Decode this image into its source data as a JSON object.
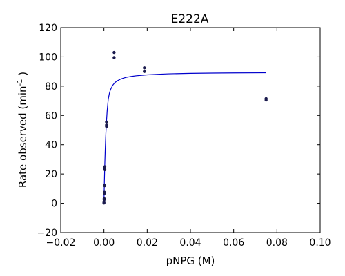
{
  "chart_data": {
    "type": "scatter",
    "title": "E222A",
    "xlabel": "pNPG (M)",
    "ylabel": {
      "main": "Rate observed (min",
      "superscript": "-1",
      "close": " )"
    },
    "xlim": [
      -0.02,
      0.1
    ],
    "ylim": [
      -20,
      120
    ],
    "xticks": [
      {
        "value": -0.02,
        "label": "−0.02"
      },
      {
        "value": 0.0,
        "label": "0.00"
      },
      {
        "value": 0.02,
        "label": "0.02"
      },
      {
        "value": 0.04,
        "label": "0.04"
      },
      {
        "value": 0.06,
        "label": "0.06"
      },
      {
        "value": 0.08,
        "label": "0.08"
      },
      {
        "value": 0.1,
        "label": "0.10"
      }
    ],
    "yticks": [
      {
        "value": -20,
        "label": "−20"
      },
      {
        "value": 0,
        "label": "0"
      },
      {
        "value": 20,
        "label": "20"
      },
      {
        "value": 40,
        "label": "40"
      },
      {
        "value": 60,
        "label": "60"
      },
      {
        "value": 80,
        "label": "80"
      },
      {
        "value": 100,
        "label": "100"
      },
      {
        "value": 120,
        "label": "120"
      }
    ],
    "grid": false,
    "series": [
      {
        "kind": "points",
        "color": "#1a1a4d",
        "points": [
          {
            "x": 0.0,
            "y": 0.2
          },
          {
            "x": 0.0,
            "y": 0.6
          },
          {
            "x": 0.0001,
            "y": 2.5
          },
          {
            "x": 0.0001,
            "y": 3.2
          },
          {
            "x": 0.0002,
            "y": 6.8
          },
          {
            "x": 0.0002,
            "y": 7.5
          },
          {
            "x": 0.0003,
            "y": 12.0
          },
          {
            "x": 0.0003,
            "y": 12.5
          },
          {
            "x": 0.0004,
            "y": 23.0
          },
          {
            "x": 0.0004,
            "y": 24.0
          },
          {
            "x": 0.0004,
            "y": 25.0
          },
          {
            "x": 0.0012,
            "y": 52.5
          },
          {
            "x": 0.0012,
            "y": 53.5
          },
          {
            "x": 0.0012,
            "y": 55.5
          },
          {
            "x": 0.0047,
            "y": 99.5
          },
          {
            "x": 0.0047,
            "y": 103.0
          },
          {
            "x": 0.0187,
            "y": 90.0
          },
          {
            "x": 0.0187,
            "y": 92.5
          },
          {
            "x": 0.075,
            "y": 70.5
          },
          {
            "x": 0.075,
            "y": 71.5
          }
        ]
      },
      {
        "kind": "fit-curve",
        "color": "#0000cc",
        "x": [
          0,
          0.0001,
          0.0002,
          0.0003,
          0.0004,
          0.0006,
          0.0008,
          0.001,
          0.0012,
          0.0015,
          0.002,
          0.0025,
          0.003,
          0.004,
          0.005,
          0.006,
          0.008,
          0.01,
          0.0125,
          0.015,
          0.02,
          0.025,
          0.03,
          0.04,
          0.05,
          0.06,
          0.075
        ],
        "y": [
          0,
          7.9,
          15.0,
          21.3,
          27.0,
          36.7,
          44.6,
          51.1,
          56.6,
          63.4,
          71.2,
          75.0,
          77.5,
          80.5,
          82.3,
          83.5,
          85.0,
          85.9,
          86.6,
          87.1,
          87.7,
          88.1,
          88.4,
          88.7,
          88.9,
          89.0,
          89.1
        ]
      }
    ]
  }
}
